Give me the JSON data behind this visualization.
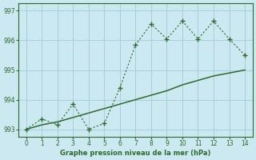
{
  "zigzag_x": [
    0,
    1,
    2,
    3,
    4,
    5,
    6,
    7,
    8,
    9,
    10,
    11,
    12,
    13,
    14
  ],
  "zigzag_y": [
    993.0,
    993.35,
    993.15,
    993.85,
    993.0,
    993.2,
    994.4,
    995.85,
    996.55,
    996.05,
    996.65,
    996.05,
    996.65,
    996.05,
    995.5
  ],
  "trend_x": [
    0,
    1,
    2,
    3,
    4,
    5,
    6,
    7,
    8,
    9,
    10,
    11,
    12,
    13,
    14
  ],
  "trend_y": [
    993.0,
    993.15,
    993.25,
    993.4,
    993.55,
    993.7,
    993.85,
    994.0,
    994.15,
    994.3,
    994.5,
    994.65,
    994.8,
    994.9,
    995.0
  ],
  "line_color": "#2d6a2d",
  "bg_color": "#cce8f0",
  "grid_color": "#9fccd8",
  "xlabel": "Graphe pression niveau de la mer (hPa)",
  "ylim": [
    992.75,
    997.25
  ],
  "xlim": [
    -0.5,
    14.5
  ],
  "yticks": [
    993,
    994,
    995,
    996,
    997
  ],
  "xticks": [
    0,
    1,
    2,
    3,
    4,
    5,
    6,
    7,
    8,
    9,
    10,
    11,
    12,
    13,
    14
  ]
}
